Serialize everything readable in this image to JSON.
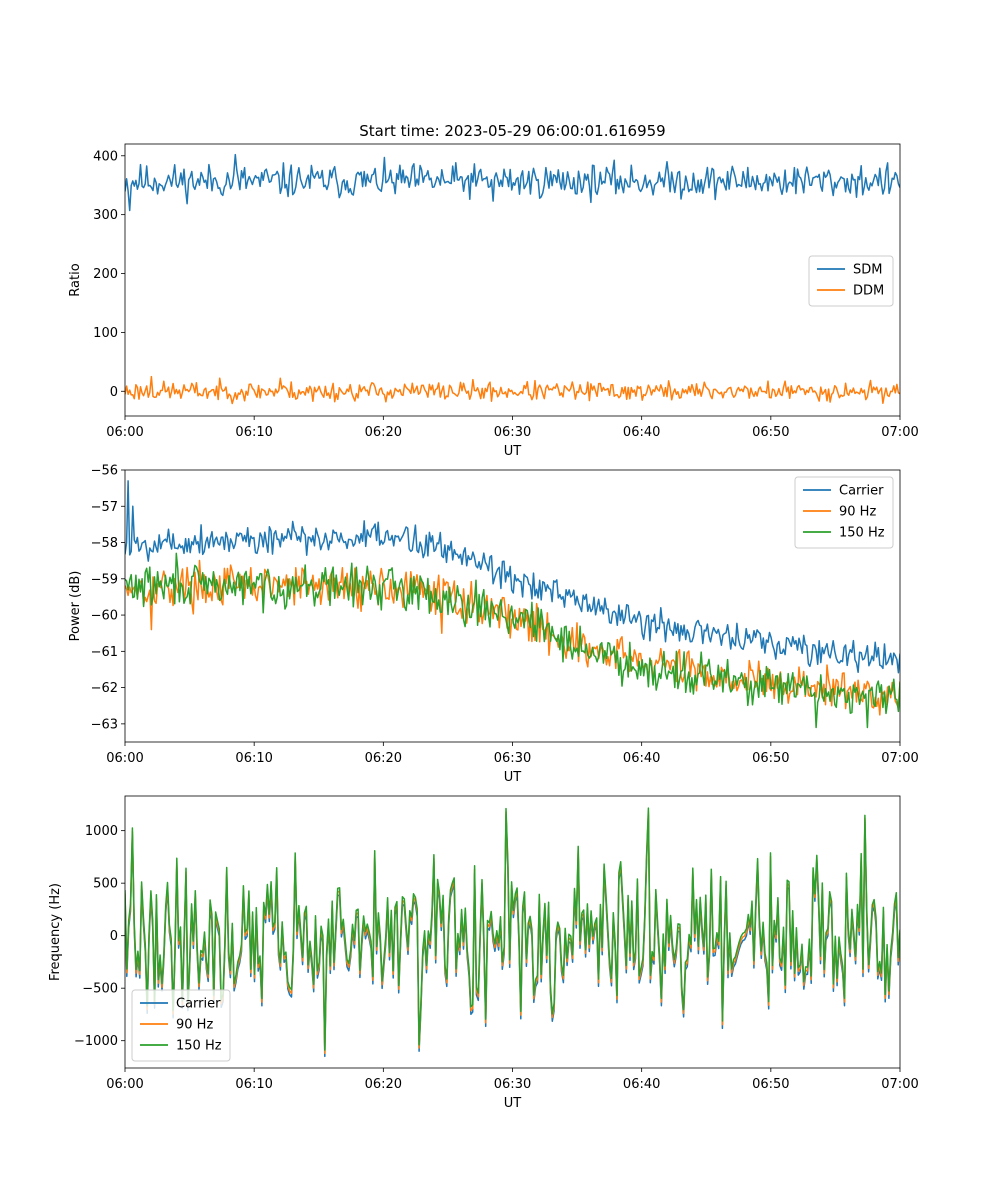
{
  "figure": {
    "title": "Start time: 2023-05-29 06:00:01.616959"
  },
  "chart_data": [
    {
      "type": "line",
      "xlabel": "UT",
      "ylabel": "Ratio",
      "x_ticks": [
        "06:00",
        "06:10",
        "06:20",
        "06:30",
        "06:40",
        "06:50",
        "07:00"
      ],
      "xlim": [
        0,
        60
      ],
      "ylim": [
        -42,
        420
      ],
      "y_ticks": [
        0,
        100,
        200,
        300,
        400
      ],
      "y_tick_labels": [
        "0",
        "100",
        "200",
        "300",
        "400"
      ],
      "legend_position": "center-right",
      "series": [
        {
          "name": "SDM",
          "color": "#1f77b4",
          "gen": {
            "mode": "noise",
            "base": 357,
            "amp": 14,
            "count": 500,
            "seed": 11,
            "spikes": [
              [
                0.4,
                307
              ],
              [
                8.5,
                402
              ],
              [
                28.5,
                323
              ],
              [
                59.5,
                360
              ]
            ]
          }
        },
        {
          "name": "DDM",
          "color": "#ff7f0e",
          "gen": {
            "mode": "noise",
            "base": 0,
            "amp": 8,
            "count": 500,
            "seed": 23,
            "spikes": [
              [
                2.0,
                25
              ],
              [
                12.0,
                22
              ],
              [
                14.5,
                -17
              ]
            ]
          }
        }
      ]
    },
    {
      "type": "line",
      "xlabel": "UT",
      "ylabel": "Power (dB)",
      "x_ticks": [
        "06:00",
        "06:10",
        "06:20",
        "06:30",
        "06:40",
        "06:50",
        "07:00"
      ],
      "xlim": [
        0,
        60
      ],
      "ylim": [
        -63.5,
        -56
      ],
      "y_ticks": [
        -63,
        -62,
        -61,
        -60,
        -59,
        -58,
        -57,
        -56
      ],
      "y_tick_labels": [
        "−63",
        "−62",
        "−61",
        "−60",
        "−59",
        "−58",
        "−57",
        "−56"
      ],
      "legend_position": "top-right",
      "series": [
        {
          "name": "Carrier",
          "color": "#1f77b4",
          "gen": {
            "mode": "trend",
            "knots": [
              [
                0,
                -58.2
              ],
              [
                2,
                -58.0
              ],
              [
                10,
                -57.9
              ],
              [
                22,
                -57.9
              ],
              [
                27,
                -58.4
              ],
              [
                32,
                -59.3
              ],
              [
                40,
                -60.2
              ],
              [
                50,
                -60.8
              ],
              [
                60,
                -61.3
              ]
            ],
            "amp": 0.22,
            "count": 500,
            "seed": 5,
            "spikes": [
              [
                0.3,
                -56.3
              ],
              [
                0.6,
                -57.0
              ]
            ]
          }
        },
        {
          "name": "90 Hz",
          "color": "#ff7f0e",
          "gen": {
            "mode": "trend",
            "knots": [
              [
                0,
                -59.2
              ],
              [
                10,
                -59.2
              ],
              [
                20,
                -59.2
              ],
              [
                25,
                -59.5
              ],
              [
                30,
                -60.0
              ],
              [
                36,
                -61.0
              ],
              [
                40,
                -61.3
              ],
              [
                50,
                -61.9
              ],
              [
                60,
                -62.2
              ]
            ],
            "amp": 0.28,
            "count": 500,
            "seed": 17,
            "spikes": [
              [
                2.0,
                -60.4
              ],
              [
                24.5,
                -60.5
              ]
            ]
          }
        },
        {
          "name": "150 Hz",
          "color": "#2ca02c",
          "gen": {
            "mode": "trend",
            "knots": [
              [
                0,
                -59.2
              ],
              [
                10,
                -59.2
              ],
              [
                20,
                -59.2
              ],
              [
                25,
                -59.5
              ],
              [
                30,
                -60.0
              ],
              [
                36,
                -61.0
              ],
              [
                40,
                -61.4
              ],
              [
                50,
                -62.0
              ],
              [
                60,
                -62.3
              ]
            ],
            "amp": 0.28,
            "count": 500,
            "seed": 29,
            "spikes": [
              [
                4.0,
                -58.3
              ],
              [
                53.5,
                -63.1
              ],
              [
                57.5,
                -63.1
              ]
            ]
          }
        }
      ]
    },
    {
      "type": "line",
      "xlabel": "UT",
      "ylabel": "Frequency (Hz)",
      "x_ticks": [
        "06:00",
        "06:10",
        "06:20",
        "06:30",
        "06:40",
        "06:50",
        "07:00"
      ],
      "xlim": [
        0,
        60
      ],
      "ylim": [
        -1260,
        1330
      ],
      "y_ticks": [
        -1000,
        -500,
        0,
        500,
        1000
      ],
      "y_tick_labels": [
        "−1000",
        "−500",
        "0",
        "500",
        "1000"
      ],
      "legend_position": "bottom-left",
      "series": [
        {
          "name": "Carrier",
          "color": "#1f77b4",
          "gen": {
            "mode": "freq",
            "offset": -60,
            "amp": 330,
            "count": 420,
            "seed": 41,
            "spikes": [
              [
                15.5,
                -1150
              ],
              [
                22.7,
                -1100
              ],
              [
                29.5,
                1150
              ],
              [
                40.5,
                1150
              ],
              [
                57.3,
                1100
              ]
            ]
          }
        },
        {
          "name": "90 Hz",
          "color": "#ff7f0e",
          "gen": {
            "mode": "freq",
            "offset": -25,
            "amp": 330,
            "count": 420,
            "seed": 41,
            "spikes": [
              [
                15.5,
                -1120
              ],
              [
                22.7,
                -1070
              ],
              [
                29.5,
                1180
              ],
              [
                40.5,
                1180
              ],
              [
                57.3,
                1120
              ]
            ]
          }
        },
        {
          "name": "150 Hz",
          "color": "#2ca02c",
          "gen": {
            "mode": "freq",
            "offset": 10,
            "amp": 330,
            "count": 420,
            "seed": 41,
            "spikes": [
              [
                15.5,
                -1090
              ],
              [
                22.7,
                -1040
              ],
              [
                29.5,
                1210
              ],
              [
                40.5,
                1215
              ],
              [
                57.3,
                1145
              ]
            ]
          }
        }
      ]
    }
  ]
}
